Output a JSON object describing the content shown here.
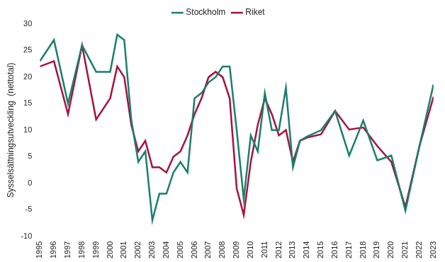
{
  "chart_data": {
    "type": "line",
    "y_label": "Sysselsättningsutveckling  (nettotal)",
    "x": [
      1995,
      1996,
      1997,
      1998,
      1999,
      2000,
      2000.5,
      2001,
      2001.5,
      2002,
      2002.5,
      2003,
      2003.5,
      2004,
      2004.5,
      2005,
      2005.5,
      2006,
      2006.5,
      2007,
      2007.5,
      2008,
      2008.5,
      2009,
      2009.5,
      2010,
      2010.5,
      2011,
      2011.5,
      2012,
      2012.5,
      2013,
      2013.5,
      2014,
      2015,
      2016,
      2017,
      2018,
      2019,
      2020,
      2021,
      2022,
      2023
    ],
    "series": [
      {
        "name": "Stockholm",
        "color": "#1a7f6b",
        "values": [
          23,
          27,
          15,
          26,
          21,
          21,
          28,
          27,
          12,
          4,
          6,
          -7,
          -2,
          -2,
          2,
          4,
          2,
          16,
          17,
          19,
          20,
          22,
          22,
          10,
          -3,
          9,
          6,
          17,
          10,
          10,
          18,
          3,
          8,
          8.8,
          10,
          13.6,
          5.2,
          11.8,
          4.3,
          5.2,
          -5.2,
          7,
          18.6
        ]
      },
      {
        "name": "Riket",
        "color": "#a6123f",
        "values": [
          22,
          23,
          13,
          26,
          12,
          16,
          22,
          20,
          11,
          6,
          8,
          3,
          3,
          2,
          5,
          6,
          9,
          13,
          16,
          20,
          21,
          20,
          16,
          -1,
          -6,
          4,
          11,
          16,
          13,
          9,
          10,
          4,
          8,
          8.6,
          9.2,
          13.6,
          10.1,
          10.5,
          7,
          4,
          -4.5,
          7,
          16.3
        ]
      }
    ],
    "xlim": [
      1995,
      2023
    ],
    "xticks": [
      1995,
      1996,
      1997,
      1998,
      1999,
      2000,
      2001,
      2002,
      2003,
      2004,
      2005,
      2006,
      2007,
      2008,
      2009,
      2010,
      2011,
      2012,
      2013,
      2014,
      2015,
      2016,
      2017,
      2018,
      2019,
      2020,
      2021,
      2022,
      2023
    ],
    "ylim": [
      -10,
      30
    ],
    "yticks": [
      -10,
      -5,
      0,
      5,
      10,
      15,
      20,
      25,
      30
    ],
    "grid": false,
    "legend": "top"
  }
}
